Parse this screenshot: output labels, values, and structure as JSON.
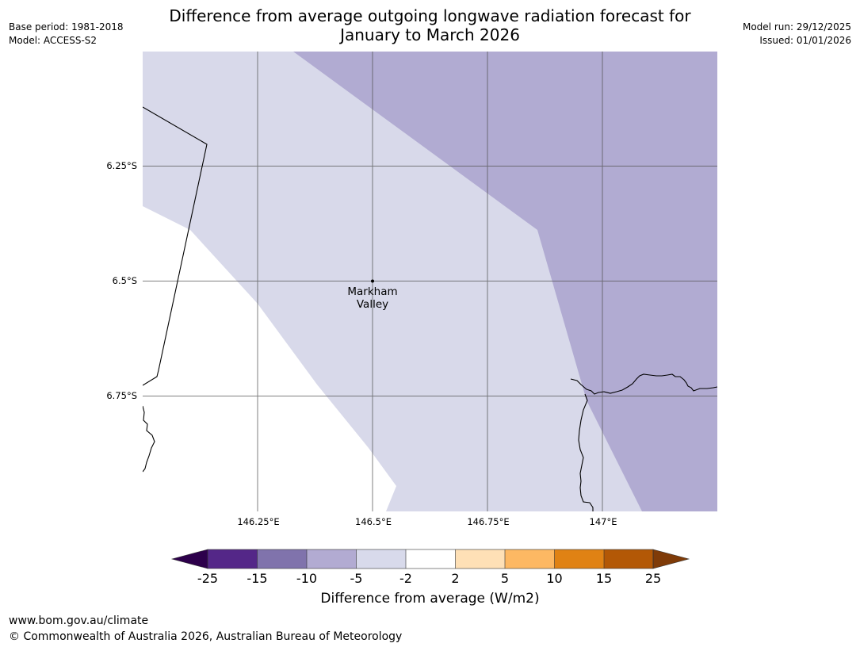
{
  "title": {
    "line1": "Difference from average outgoing longwave radiation forecast for",
    "line2": "January to March 2026"
  },
  "meta_left": {
    "base_period": "Base period: 1981-2018",
    "model": "Model: ACCESS-S2"
  },
  "meta_right": {
    "model_run": "Model run: 29/12/2025",
    "issued": "Issued: 01/01/2026"
  },
  "map": {
    "lat_labels": [
      "6.25°S",
      "6.5°S",
      "6.75°S"
    ],
    "lon_labels": [
      "146.25°E",
      "146.5°E",
      "146.75°E",
      "147°E"
    ],
    "place": {
      "line1": "Markham",
      "line2": "Valley"
    },
    "colors": {
      "ocean_or_low": "#ffffff",
      "band_m5_m2": "#d8d9ea",
      "band_m10_m5": "#b1abd2",
      "gridline": "#555555",
      "coastline": "#000000"
    }
  },
  "colorbar": {
    "ticks": [
      "-25",
      "-15",
      "-10",
      "-5",
      "-2",
      "2",
      "5",
      "10",
      "15",
      "25"
    ],
    "colors": [
      "#2d004b",
      "#542788",
      "#8073ac",
      "#b2abd2",
      "#d8daeb",
      "#ffffff",
      "#fee0b6",
      "#fdb863",
      "#e08214",
      "#b35806",
      "#7f3b08"
    ],
    "label": "Difference from average (W/m2)"
  },
  "footer": {
    "url": "www.bom.gov.au/climate",
    "copyright": "© Commonwealth of Australia 2026, Australian Bureau of Meteorology"
  }
}
